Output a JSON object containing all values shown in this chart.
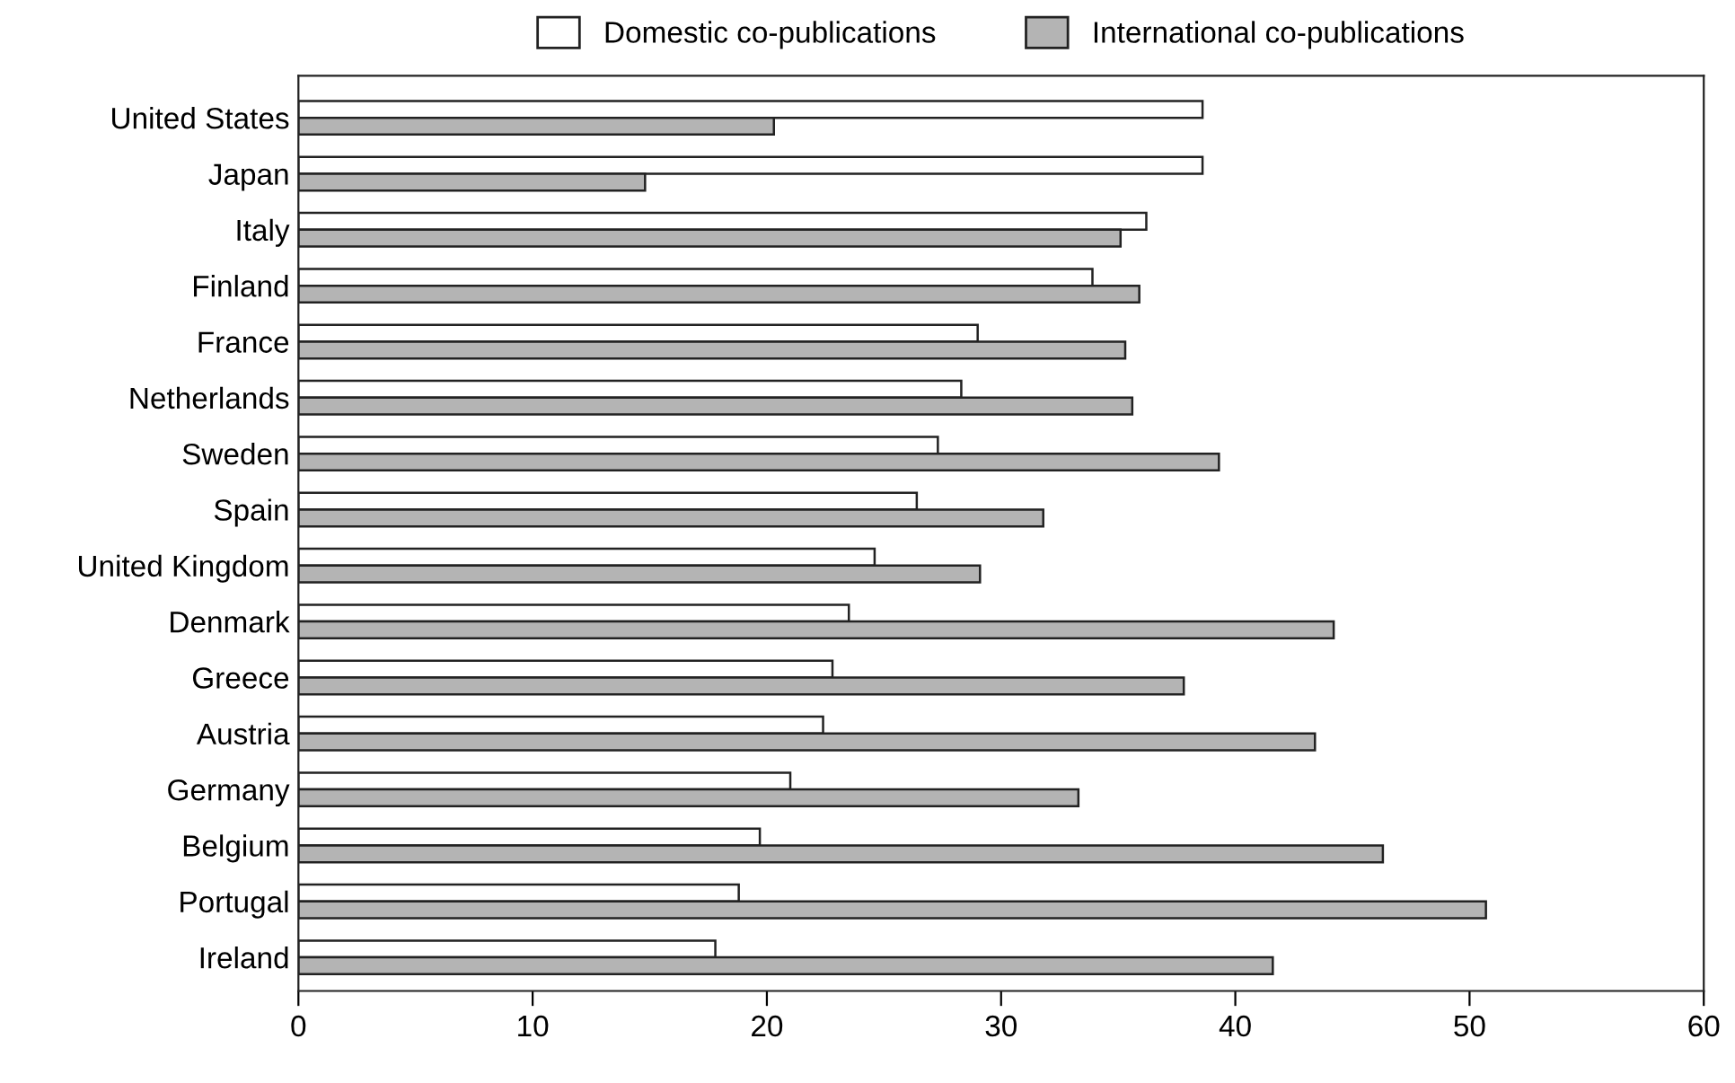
{
  "chart_data": {
    "type": "bar",
    "orientation": "horizontal",
    "categories": [
      "United States",
      "Japan",
      "Italy",
      "Finland",
      "France",
      "Netherlands",
      "Sweden",
      "Spain",
      "United Kingdom",
      "Denmark",
      "Greece",
      "Austria",
      "Germany",
      "Belgium",
      "Portugal",
      "Ireland"
    ],
    "series": [
      {
        "name": "Domestic co-publications",
        "color": "#ffffff",
        "values": [
          38.6,
          38.6,
          36.2,
          33.9,
          29.0,
          28.3,
          27.3,
          26.4,
          24.6,
          23.5,
          22.8,
          22.4,
          21.0,
          19.7,
          18.8,
          17.8
        ]
      },
      {
        "name": "International co-publications",
        "color": "#b4b4b4",
        "values": [
          20.3,
          14.8,
          35.1,
          35.9,
          35.3,
          35.6,
          39.3,
          31.8,
          29.1,
          44.2,
          37.8,
          43.4,
          33.3,
          46.3,
          50.7,
          41.6
        ]
      }
    ],
    "xlim": [
      0,
      60
    ],
    "xticks": [
      0,
      10,
      20,
      30,
      40,
      50,
      60
    ],
    "grid": false,
    "legend": "top"
  }
}
